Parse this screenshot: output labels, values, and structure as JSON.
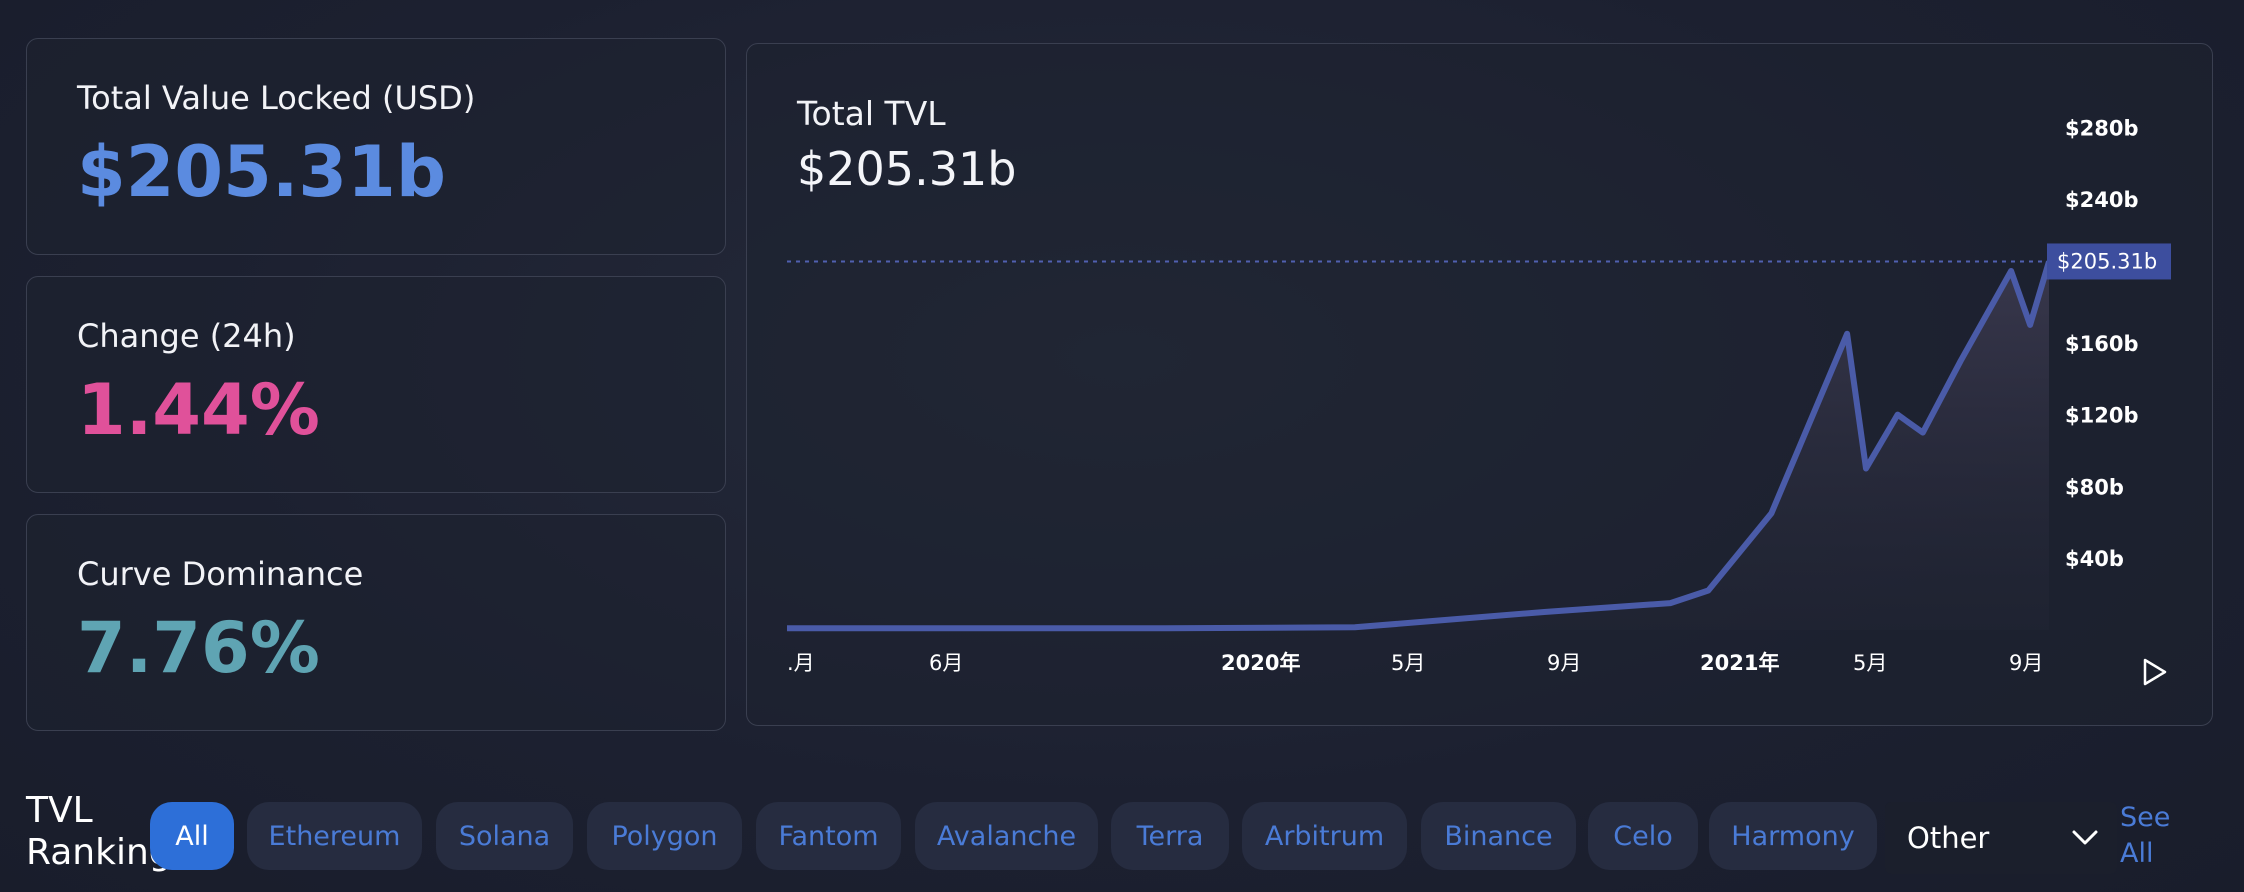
{
  "stats": [
    {
      "label": "Total Value Locked (USD)",
      "value": "$205.31b",
      "color": "#5b8be0"
    },
    {
      "label": "Change (24h)",
      "value": "1.44%",
      "color": "#e0519a"
    },
    {
      "label": "Curve Dominance",
      "value": "7.76%",
      "color": "#5fa4b3"
    }
  ],
  "chart": {
    "title": "Total TVL",
    "value": "$205.31b",
    "current_label": "$205.31b",
    "y_ticks": [
      "$280b",
      "$240b",
      "$160b",
      "$120b",
      "$80b",
      "$40b"
    ],
    "x_ticks": [
      ".月",
      "6月",
      "2020年",
      "5月",
      "9月",
      "2021年",
      "5月",
      "9月"
    ],
    "play_icon": "play-icon"
  },
  "chart_data": {
    "type": "area",
    "x": [
      "2019-04",
      "2019-06",
      "2019-09",
      "2020-01",
      "2020-05",
      "2020-09",
      "2020-12",
      "2021-01",
      "2021-03",
      "2021-05-10",
      "2021-05-20",
      "2021-06",
      "2021-07",
      "2021-08",
      "2021-09",
      "2021-09-20",
      "2021-10"
    ],
    "series": [
      {
        "values": [
          1,
          1,
          1,
          1,
          1.5,
          10,
          15,
          22,
          65,
          165,
          90,
          120,
          110,
          150,
          200,
          170,
          205.31
        ]
      }
    ],
    "y_unit": "$b",
    "ylim": [
      0,
      300
    ],
    "current_value": 205.31
  },
  "ranking": {
    "title": "TVL Rankings",
    "filters": [
      "All",
      "Ethereum",
      "Solana",
      "Polygon",
      "Fantom",
      "Avalanche",
      "Terra",
      "Arbitrum",
      "Binance",
      "Celo",
      "Harmony"
    ],
    "active": "All",
    "other_select": "Other",
    "see_all": "See All"
  },
  "colors": {
    "accent": "#2d6fd8",
    "line": "#4a5ba8"
  }
}
